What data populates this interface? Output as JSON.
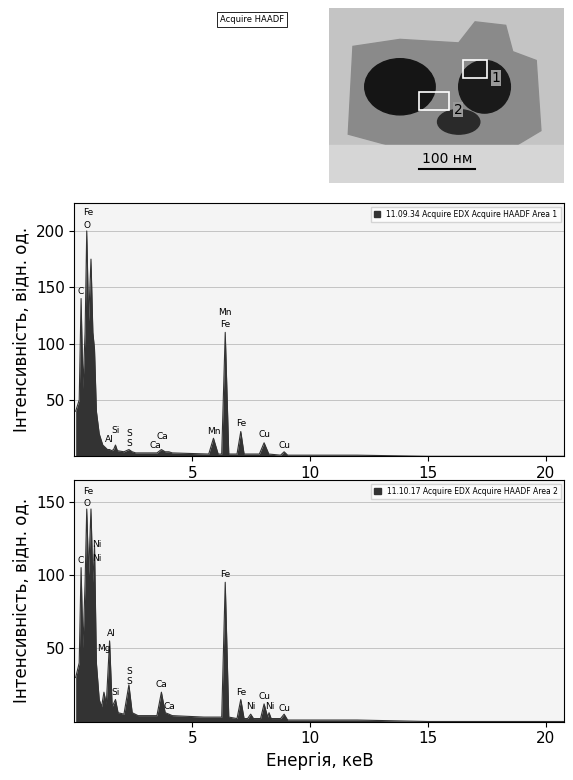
{
  "image": {
    "label": "Acquire HAADF",
    "scale_bar": "100 нм",
    "areas": [
      "1",
      "2"
    ]
  },
  "chart_data": [
    {
      "type": "area",
      "ylabel": "Інтенсивність, відн. од.",
      "xlim": [
        0,
        20.8
      ],
      "xticks": [
        5,
        10,
        15,
        20
      ],
      "ylim": [
        0,
        225
      ],
      "yticks": [
        50,
        100,
        150,
        200
      ],
      "grid": true,
      "legend": "upper right",
      "series": [
        {
          "name": "11.09.34 Acquire EDX Acquire HAADF Area 1",
          "color": "#333333",
          "x": [
            0.05,
            0.2,
            0.28,
            0.36,
            0.45,
            0.52,
            0.6,
            0.7,
            0.78,
            0.85,
            0.93,
            1.05,
            1.2,
            1.4,
            1.49,
            1.58,
            1.66,
            1.74,
            1.82,
            2.1,
            2.31,
            2.45,
            2.6,
            3.5,
            3.69,
            3.85,
            4.01,
            4.15,
            5.7,
            5.9,
            6.1,
            6.25,
            6.4,
            6.55,
            6.9,
            7.06,
            7.2,
            7.85,
            8.05,
            8.25,
            8.75,
            8.9,
            9.05,
            10,
            12,
            15,
            18,
            20.8
          ],
          "values": [
            40,
            50,
            140,
            60,
            110,
            200,
            120,
            175,
            110,
            95,
            40,
            20,
            10,
            6,
            6,
            5,
            6,
            10,
            5,
            4,
            6,
            4,
            3,
            3,
            6,
            4,
            4,
            3,
            2,
            16,
            2,
            2,
            110,
            2,
            2,
            22,
            2,
            2,
            12,
            2,
            1,
            4,
            1,
            1,
            1,
            0,
            0,
            0
          ]
        }
      ],
      "annotations": [
        {
          "text": "Fe",
          "x": 0.6,
          "y": 212
        },
        {
          "text": "O",
          "x": 0.52,
          "y": 201
        },
        {
          "text": "C",
          "x": 0.28,
          "y": 142
        },
        {
          "text": "Si",
          "x": 1.74,
          "y": 19
        },
        {
          "text": "Al",
          "x": 1.49,
          "y": 11
        },
        {
          "text": "S",
          "x": 2.31,
          "y": 16
        },
        {
          "text": "S",
          "x": 2.31,
          "y": 7
        },
        {
          "text": "Ca",
          "x": 3.75,
          "y": 14
        },
        {
          "text": "Ca",
          "x": 3.45,
          "y": 6
        },
        {
          "text": "Mn",
          "x": 6.4,
          "y": 124
        },
        {
          "text": "Fe",
          "x": 6.4,
          "y": 113
        },
        {
          "text": "Mn",
          "x": 5.9,
          "y": 18
        },
        {
          "text": "Fe",
          "x": 7.06,
          "y": 25
        },
        {
          "text": "Cu",
          "x": 8.05,
          "y": 15
        },
        {
          "text": "Cu",
          "x": 8.9,
          "y": 6
        }
      ]
    },
    {
      "type": "area",
      "ylabel": "Інтенсивність, відн. од.",
      "xlabel": "Енергія, кеВ",
      "xlim": [
        0,
        20.8
      ],
      "xticks": [
        5,
        10,
        15,
        20
      ],
      "ylim": [
        0,
        165
      ],
      "yticks": [
        50,
        100,
        150
      ],
      "grid": true,
      "legend": "upper right",
      "series": [
        {
          "name": "11.10.17 Acquire EDX Acquire HAADF Area 2",
          "color": "#333333",
          "x": [
            0.05,
            0.2,
            0.28,
            0.36,
            0.45,
            0.52,
            0.6,
            0.7,
            0.78,
            0.85,
            0.93,
            1.05,
            1.15,
            1.25,
            1.35,
            1.49,
            1.6,
            1.74,
            1.85,
            2.1,
            2.31,
            2.45,
            2.7,
            3.5,
            3.69,
            3.85,
            4.01,
            4.15,
            5.5,
            6.25,
            6.4,
            6.55,
            6.9,
            7.06,
            7.2,
            7.35,
            7.48,
            7.6,
            7.9,
            8.05,
            8.2,
            8.26,
            8.35,
            8.75,
            8.9,
            9.05,
            10,
            12,
            15,
            18,
            20.8
          ],
          "values": [
            30,
            40,
            105,
            50,
            95,
            145,
            100,
            145,
            95,
            120,
            40,
            15,
            10,
            20,
            12,
            55,
            10,
            15,
            6,
            5,
            25,
            6,
            4,
            4,
            20,
            6,
            5,
            4,
            3,
            3,
            95,
            3,
            2,
            15,
            2,
            2,
            5,
            2,
            2,
            12,
            3,
            6,
            2,
            2,
            5,
            1,
            1,
            1,
            0,
            0,
            0
          ]
        }
      ],
      "annotations": [
        {
          "text": "Fe",
          "x": 0.6,
          "y": 154
        },
        {
          "text": "O",
          "x": 0.52,
          "y": 146
        },
        {
          "text": "C",
          "x": 0.28,
          "y": 107
        },
        {
          "text": "Ni",
          "x": 0.95,
          "y": 118
        },
        {
          "text": "Ni",
          "x": 0.95,
          "y": 108
        },
        {
          "text": "Al",
          "x": 1.55,
          "y": 57
        },
        {
          "text": "Mg",
          "x": 1.25,
          "y": 47
        },
        {
          "text": "Si",
          "x": 1.74,
          "y": 17
        },
        {
          "text": "S",
          "x": 2.31,
          "y": 31
        },
        {
          "text": "S",
          "x": 2.31,
          "y": 24
        },
        {
          "text": "Ca",
          "x": 3.69,
          "y": 22
        },
        {
          "text": "Ca",
          "x": 4.01,
          "y": 7
        },
        {
          "text": "Fe",
          "x": 6.4,
          "y": 97
        },
        {
          "text": "Fe",
          "x": 7.06,
          "y": 17
        },
        {
          "text": "Ni",
          "x": 7.48,
          "y": 7
        },
        {
          "text": "Cu",
          "x": 8.05,
          "y": 14
        },
        {
          "text": "Ni",
          "x": 8.3,
          "y": 7
        },
        {
          "text": "Cu",
          "x": 8.9,
          "y": 6
        }
      ]
    }
  ]
}
